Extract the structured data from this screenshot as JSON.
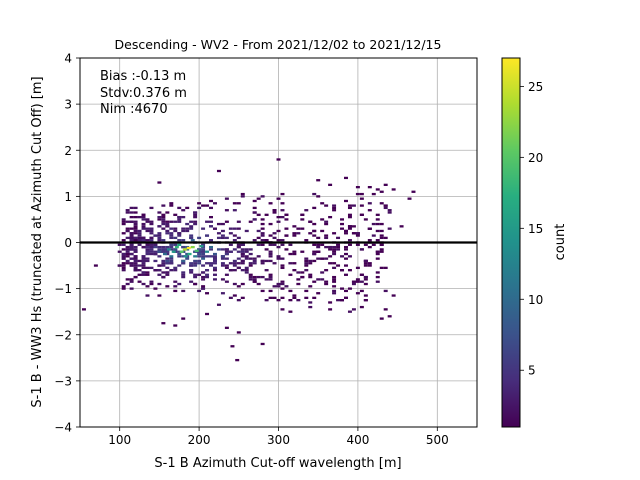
{
  "chart_data": {
    "type": "heatmap",
    "title": "Descending - WV2 - From 2021/12/02 to 2021/12/15",
    "xlabel": "S-1 B Azimuth Cut-off wavelength [m]",
    "ylabel": "S-1 B - WW3 Hs (truncated at Azimuth Cut Off) [m]",
    "xlim": [
      50,
      550
    ],
    "ylim": [
      -4,
      4
    ],
    "xticks": [
      100,
      200,
      300,
      400,
      500
    ],
    "yticks": [
      -4,
      -3,
      -2,
      -1,
      0,
      1,
      2,
      3,
      4
    ],
    "grid": true,
    "reference_line_y": 0,
    "annotations": [
      "Bias :-0.13 m",
      "Stdv:0.376 m",
      "Nim :4670"
    ],
    "colorbar": {
      "label": "count",
      "colormap": "viridis",
      "range": [
        1,
        27
      ],
      "ticks": [
        5,
        10,
        15,
        20,
        25
      ]
    },
    "bin_width_x": 5,
    "bin_height_y": 0.05,
    "cells": [
      [
        187,
        -0.12,
        27
      ],
      [
        182,
        -0.15,
        24
      ],
      [
        192,
        -0.1,
        22
      ],
      [
        178,
        -0.2,
        20
      ],
      [
        197,
        -0.18,
        19
      ],
      [
        172,
        -0.1,
        18
      ],
      [
        188,
        -0.25,
        17
      ],
      [
        168,
        -0.2,
        15
      ],
      [
        203,
        -0.08,
        15
      ],
      [
        175,
        -0.05,
        16
      ],
      [
        183,
        -0.3,
        14
      ],
      [
        210,
        -0.2,
        13
      ],
      [
        162,
        -0.15,
        13
      ],
      [
        195,
        -0.3,
        12
      ],
      [
        165,
        -0.3,
        11
      ],
      [
        215,
        -0.1,
        10
      ],
      [
        157,
        -0.25,
        10
      ],
      [
        205,
        -0.35,
        9
      ],
      [
        180,
        -0.4,
        9
      ],
      [
        220,
        -0.25,
        8
      ],
      [
        150,
        -0.2,
        8
      ],
      [
        192,
        0.05,
        9
      ],
      [
        170,
        0.0,
        8
      ],
      [
        225,
        -0.15,
        7
      ],
      [
        145,
        -0.1,
        6
      ],
      [
        230,
        -0.3,
        6
      ],
      [
        160,
        -0.4,
        7
      ],
      [
        200,
        0.1,
        6
      ]
    ],
    "scatter_points": [
      [
        55,
        -1.45
      ],
      [
        70,
        -0.5
      ],
      [
        150,
        1.3
      ],
      [
        225,
        1.55
      ],
      [
        300,
        1.8
      ],
      [
        350,
        1.35
      ],
      [
        405,
        0.95
      ],
      [
        435,
        1.25
      ],
      [
        465,
        0.95
      ],
      [
        470,
        1.1
      ],
      [
        242,
        -2.25
      ],
      [
        248,
        -2.55
      ],
      [
        280,
        -2.2
      ],
      [
        170,
        -1.8
      ],
      [
        155,
        -1.75
      ],
      [
        180,
        -1.65
      ],
      [
        235,
        -1.85
      ],
      [
        210,
        -1.55
      ],
      [
        250,
        -1.95
      ],
      [
        305,
        -1.45
      ],
      [
        320,
        -1.2
      ],
      [
        340,
        -0.95
      ],
      [
        385,
        -0.1
      ],
      [
        430,
        -0.05
      ],
      [
        415,
        0.3
      ],
      [
        455,
        0.35
      ],
      [
        385,
        0.2
      ],
      [
        400,
        0.15
      ],
      [
        355,
        0.5
      ],
      [
        370,
        0.7
      ]
    ]
  }
}
